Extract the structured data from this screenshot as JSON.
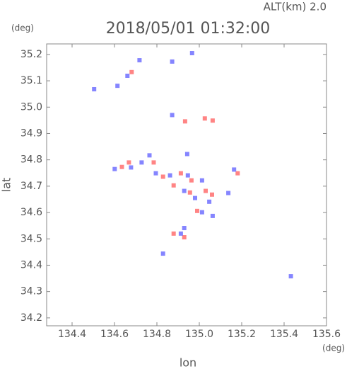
{
  "chart_data": {
    "type": "scatter",
    "title": "2018/05/01 01:32:00",
    "subtitle": "ALT(km) 2.0",
    "x_label": "lon",
    "y_label": "lat",
    "x_unit": "(deg)",
    "y_unit": "(deg)",
    "xlim": [
      134.28,
      135.6
    ],
    "ylim": [
      34.17,
      35.24
    ],
    "xticks": [
      134.4,
      134.6,
      134.8,
      {
        "value": 135.0,
        "label": "135.0"
      },
      135.2,
      135.4,
      135.6
    ],
    "yticks": [
      34.2,
      34.3,
      34.4,
      34.5,
      34.6,
      34.7,
      34.8,
      34.9,
      {
        "value": 35.0,
        "label": "35.0"
      },
      35.1,
      35.2
    ],
    "series": [
      {
        "color": "#ff6f6f",
        "x": [
          134.681,
          134.933,
          135.026,
          135.063,
          134.785,
          134.635,
          134.829,
          134.913,
          134.963,
          134.879,
          134.956,
          135.03,
          135.06,
          134.99,
          135.181,
          134.879,
          134.929,
          134.668
        ],
        "values": [
          35.133,
          34.946,
          34.957,
          34.949,
          34.79,
          34.773,
          34.736,
          34.749,
          34.722,
          34.703,
          34.676,
          34.682,
          34.668,
          34.606,
          34.749,
          34.52,
          34.506,
          34.79
        ]
      },
      {
        "color": "#7070ff",
        "x": [
          134.718,
          134.661,
          134.504,
          134.614,
          134.872,
          134.966,
          134.872,
          134.943,
          134.765,
          134.601,
          134.678,
          134.728,
          134.795,
          134.862,
          134.946,
          135.013,
          134.929,
          134.98,
          135.047,
          135.013,
          135.063,
          135.137,
          135.164,
          134.929,
          134.913,
          134.829,
          135.432
        ],
        "values": [
          35.178,
          35.119,
          35.068,
          35.081,
          35.173,
          35.205,
          34.97,
          34.822,
          34.817,
          34.765,
          34.771,
          34.79,
          34.749,
          34.741,
          34.741,
          34.722,
          34.682,
          34.655,
          34.641,
          34.601,
          34.587,
          34.674,
          34.763,
          34.541,
          34.52,
          34.444,
          34.358
        ]
      }
    ]
  }
}
